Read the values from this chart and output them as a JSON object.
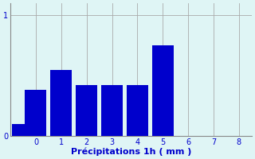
{
  "categories": [
    -0.5,
    0,
    1,
    2,
    3,
    4,
    5,
    6
  ],
  "values": [
    0.1,
    0.38,
    0.55,
    0.42,
    0.42,
    0.42,
    0.75,
    0.0
  ],
  "bar_color": "#0000cc",
  "background_color": "#dff5f5",
  "xlabel": "Précipitations 1h ( mm )",
  "ylim": [
    0,
    1.1
  ],
  "xlim": [
    -1.0,
    8.5
  ],
  "yticks": [
    0,
    1
  ],
  "xticks": [
    0,
    1,
    2,
    3,
    4,
    5,
    6,
    7,
    8
  ],
  "grid_color": "#aaaaaa",
  "text_color": "#0000cc",
  "xlabel_fontsize": 8,
  "tick_fontsize": 7,
  "bar_width": 0.85
}
